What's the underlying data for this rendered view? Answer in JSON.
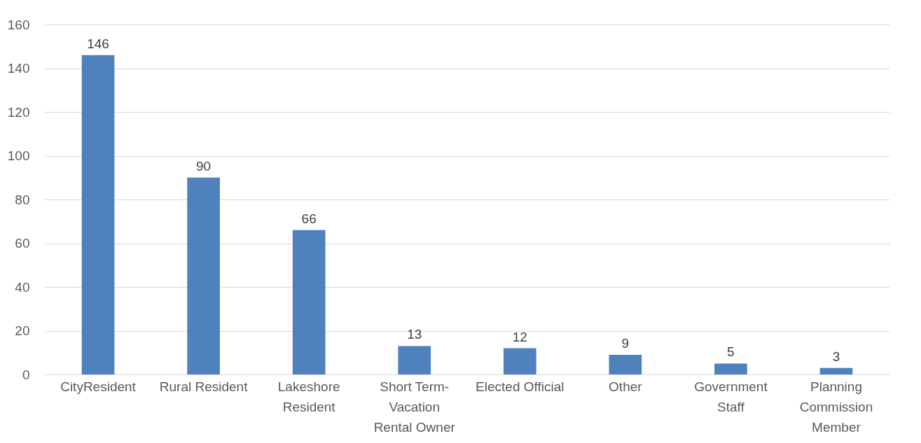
{
  "chart_data": {
    "type": "bar",
    "categories": [
      "CityResident",
      "Rural Resident",
      "Lakeshore\nResident",
      "Short Term-\nVacation\nRental Owner",
      "Elected Official",
      "Other",
      "Government\nStaff",
      "Planning\nCommission\nMember"
    ],
    "values": [
      146,
      90,
      66,
      13,
      12,
      9,
      5,
      3
    ],
    "color": "#4f81bd",
    "ylim": [
      0,
      160
    ],
    "yticks": [
      0,
      20,
      40,
      60,
      80,
      100,
      120,
      140,
      160
    ],
    "grid": "y",
    "data_labels": true
  }
}
